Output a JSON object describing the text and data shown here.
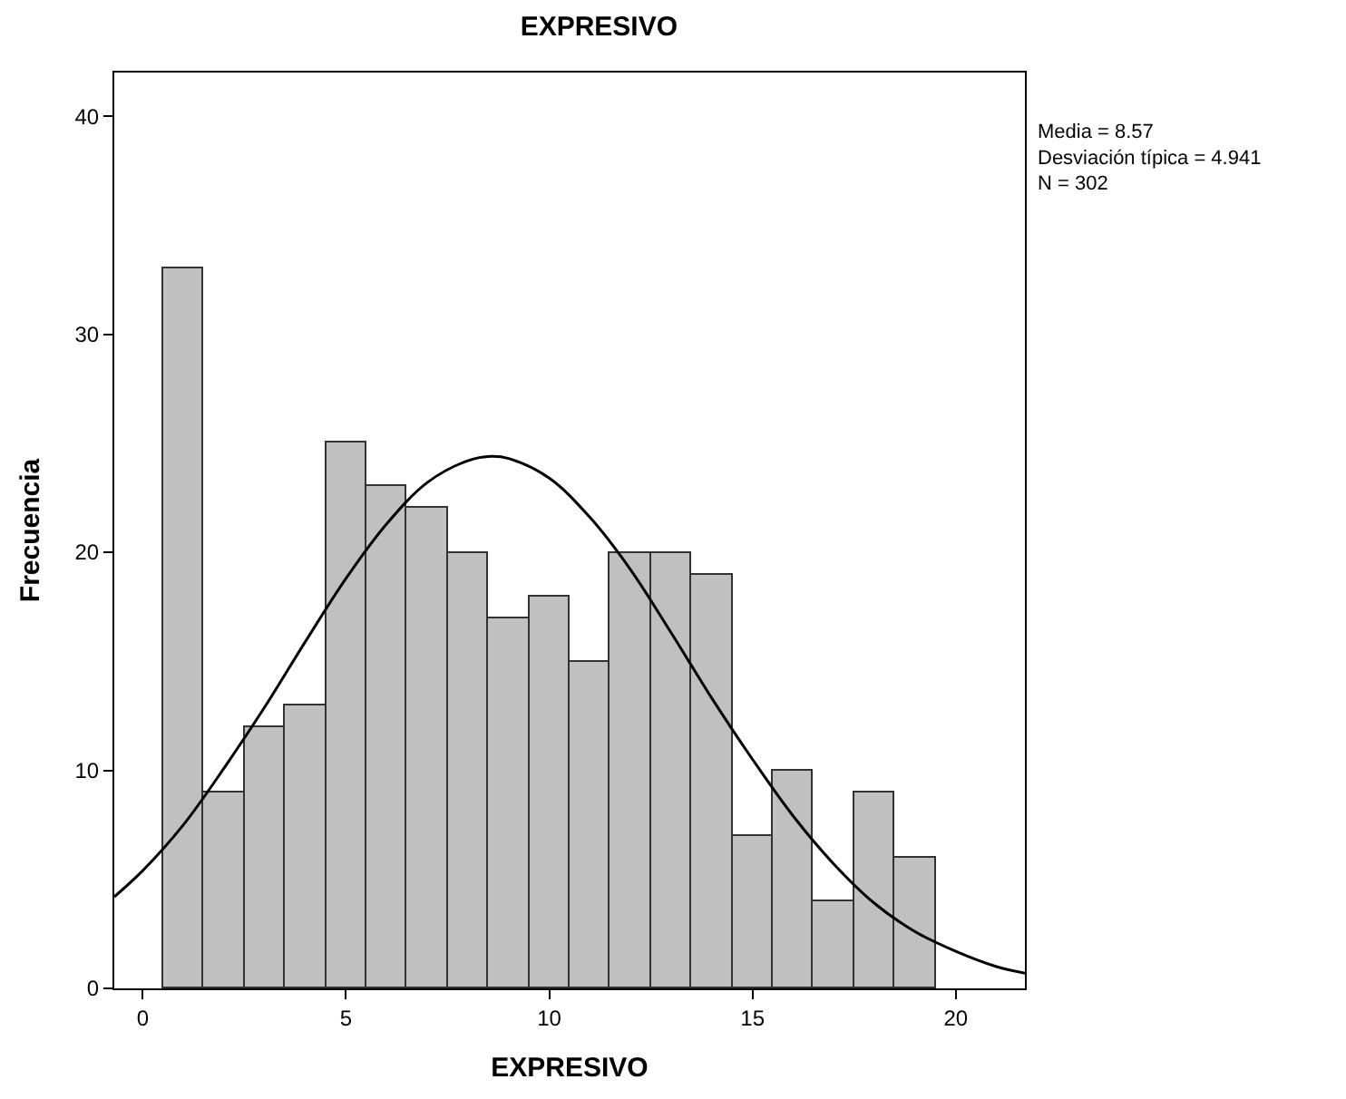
{
  "chart_data": {
    "type": "histogram",
    "title": "EXPRESIVO",
    "xlabel": "EXPRESIVO",
    "ylabel": "Frecuencia",
    "bins": [
      0.5,
      1.5,
      2.5,
      3.5,
      4.5,
      5.5,
      6.5,
      7.5,
      8.5,
      9.5,
      10.5,
      11.5,
      12.5,
      13.5,
      14.5,
      15.5,
      16.5,
      17.5,
      18.5,
      19.5
    ],
    "values": [
      33,
      9,
      12,
      13,
      25,
      23,
      22,
      20,
      17,
      18,
      15,
      20,
      20,
      19,
      7,
      10,
      4,
      9,
      6
    ],
    "color": "#c0c0c0",
    "series": [
      {
        "type": "line",
        "color": "#000000",
        "x": [
          -0.7,
          0,
          1,
          2,
          3,
          4,
          5,
          6,
          7,
          8,
          8.57,
          9,
          10,
          11,
          12,
          13,
          14,
          15,
          16,
          17,
          18,
          19,
          20,
          21,
          21.7
        ],
        "values": [
          4.2,
          5.4,
          7.5,
          10.1,
          12.9,
          15.9,
          18.8,
          21.3,
          23.2,
          24.2,
          24.4,
          24.3,
          23.4,
          21.6,
          19.2,
          16.3,
          13.3,
          10.5,
          7.9,
          5.7,
          3.9,
          2.6,
          1.7,
          1.0,
          0.7
        ]
      }
    ],
    "xlim": [
      -0.7,
      21.7
    ],
    "ylim": [
      0,
      42
    ],
    "xticks": [
      0,
      5,
      10,
      15,
      20
    ],
    "yticks": [
      0,
      10,
      20,
      30,
      40
    ],
    "marker": "none",
    "line_style": "solid",
    "annotations": [
      "Media = 8.57",
      "Desviación típica = 4.941",
      "N = 302"
    ]
  }
}
